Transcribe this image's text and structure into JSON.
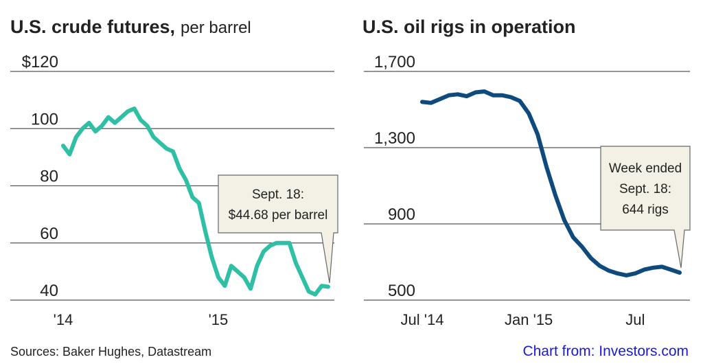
{
  "chart_data": [
    {
      "type": "line",
      "title": "U.S. crude futures,",
      "subtitle": "per barrel",
      "categories": [
        "'14",
        null,
        null,
        null,
        null,
        null,
        null,
        null,
        null,
        null,
        null,
        null,
        null,
        null,
        null,
        null,
        null,
        null,
        null,
        null,
        null,
        null,
        null,
        null,
        "'15",
        null,
        null,
        null,
        null,
        null,
        null,
        null,
        null,
        null,
        null,
        null,
        null,
        null,
        null,
        null,
        null,
        null
      ],
      "series": [
        {
          "name": "Crude futures",
          "color": "#2ebfa5",
          "values": [
            94,
            91,
            97,
            100,
            102,
            99,
            101,
            104,
            102,
            104,
            106,
            107,
            103,
            101,
            97,
            95,
            93,
            92,
            86,
            82,
            76,
            74,
            64,
            55,
            48,
            45,
            52,
            50,
            48,
            44,
            52,
            57,
            59,
            60,
            60,
            60,
            53,
            48,
            43,
            42,
            45,
            44.68
          ]
        }
      ],
      "ylim": [
        40,
        120
      ],
      "yticks": [
        40,
        60,
        80,
        100,
        {
          "value": 120,
          "label": "$120"
        }
      ],
      "grid": true,
      "annotation": [
        "Sept. 18:",
        "$44.68 per barrel"
      ]
    },
    {
      "type": "line",
      "title": "U.S. oil rigs in operation",
      "categories": [
        "Jul '14",
        null,
        null,
        null,
        null,
        null,
        null,
        null,
        null,
        null,
        null,
        null,
        "Jan '15",
        null,
        null,
        null,
        null,
        null,
        null,
        null,
        null,
        null,
        null,
        null,
        "Jul",
        null,
        null,
        null,
        null,
        null
      ],
      "series": [
        {
          "name": "Oil rigs",
          "color": "#0f4a7c",
          "values": [
            1540,
            1535,
            1555,
            1575,
            1580,
            1570,
            1590,
            1595,
            1575,
            1575,
            1565,
            1545,
            1480,
            1370,
            1200,
            1050,
            920,
            830,
            780,
            720,
            680,
            655,
            640,
            630,
            640,
            660,
            670,
            675,
            660,
            644
          ]
        }
      ],
      "ylim": [
        500,
        1700
      ],
      "yticks": [
        {
          "value": 500,
          "label": "500"
        },
        {
          "value": 900,
          "label": "900"
        },
        {
          "value": 1300,
          "label": "1,300"
        },
        {
          "value": 1700,
          "label": "1,700"
        }
      ],
      "grid": true,
      "annotation": [
        "Week ended",
        "Sept. 18:",
        "644 rigs"
      ]
    }
  ],
  "sources": "Sources: Baker Hughes, Datastream",
  "credit": "Chart from: Investors.com"
}
